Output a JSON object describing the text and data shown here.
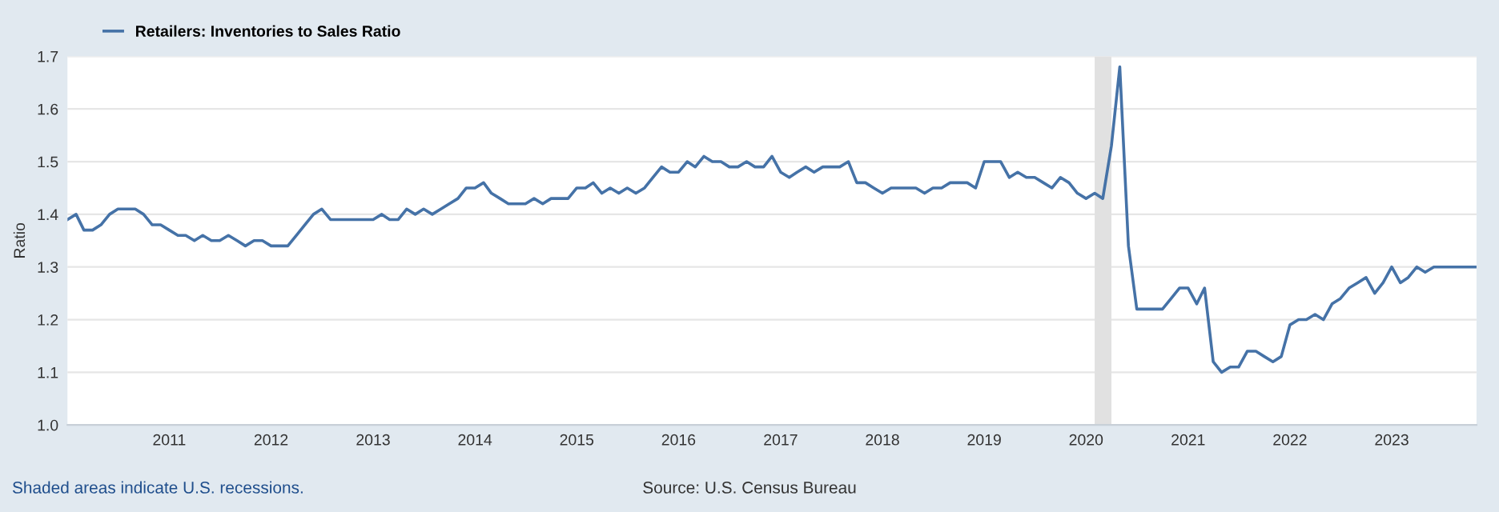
{
  "chart_data": {
    "type": "line",
    "ylabel": "Ratio",
    "x": [
      "2010-01",
      "2010-02",
      "2010-03",
      "2010-04",
      "2010-05",
      "2010-06",
      "2010-07",
      "2010-08",
      "2010-09",
      "2010-10",
      "2010-11",
      "2010-12",
      "2011-01",
      "2011-02",
      "2011-03",
      "2011-04",
      "2011-05",
      "2011-06",
      "2011-07",
      "2011-08",
      "2011-09",
      "2011-10",
      "2011-11",
      "2011-12",
      "2012-01",
      "2012-02",
      "2012-03",
      "2012-04",
      "2012-05",
      "2012-06",
      "2012-07",
      "2012-08",
      "2012-09",
      "2012-10",
      "2012-11",
      "2012-12",
      "2013-01",
      "2013-02",
      "2013-03",
      "2013-04",
      "2013-05",
      "2013-06",
      "2013-07",
      "2013-08",
      "2013-09",
      "2013-10",
      "2013-11",
      "2013-12",
      "2014-01",
      "2014-02",
      "2014-03",
      "2014-04",
      "2014-05",
      "2014-06",
      "2014-07",
      "2014-08",
      "2014-09",
      "2014-10",
      "2014-11",
      "2014-12",
      "2015-01",
      "2015-02",
      "2015-03",
      "2015-04",
      "2015-05",
      "2015-06",
      "2015-07",
      "2015-08",
      "2015-09",
      "2015-10",
      "2015-11",
      "2015-12",
      "2016-01",
      "2016-02",
      "2016-03",
      "2016-04",
      "2016-05",
      "2016-06",
      "2016-07",
      "2016-08",
      "2016-09",
      "2016-10",
      "2016-11",
      "2016-12",
      "2017-01",
      "2017-02",
      "2017-03",
      "2017-04",
      "2017-05",
      "2017-06",
      "2017-07",
      "2017-08",
      "2017-09",
      "2017-10",
      "2017-11",
      "2017-12",
      "2018-01",
      "2018-02",
      "2018-03",
      "2018-04",
      "2018-05",
      "2018-06",
      "2018-07",
      "2018-08",
      "2018-09",
      "2018-10",
      "2018-11",
      "2018-12",
      "2019-01",
      "2019-02",
      "2019-03",
      "2019-04",
      "2019-05",
      "2019-06",
      "2019-07",
      "2019-08",
      "2019-09",
      "2019-10",
      "2019-11",
      "2019-12",
      "2020-01",
      "2020-02",
      "2020-03",
      "2020-04",
      "2020-05",
      "2020-06",
      "2020-07",
      "2020-08",
      "2020-09",
      "2020-10",
      "2020-11",
      "2020-12",
      "2021-01",
      "2021-02",
      "2021-03",
      "2021-04",
      "2021-05",
      "2021-06",
      "2021-07",
      "2021-08",
      "2021-09",
      "2021-10",
      "2021-11",
      "2021-12",
      "2022-01",
      "2022-02",
      "2022-03",
      "2022-04",
      "2022-05",
      "2022-06",
      "2022-07",
      "2022-08",
      "2022-09",
      "2022-10",
      "2022-11",
      "2022-12",
      "2023-01",
      "2023-02",
      "2023-03",
      "2023-04",
      "2023-05",
      "2023-06",
      "2023-07",
      "2023-08",
      "2023-09",
      "2023-10",
      "2023-11"
    ],
    "series": [
      {
        "name": "Retailers: Inventories to Sales Ratio",
        "color": "#4572a7",
        "values": [
          1.39,
          1.4,
          1.37,
          1.37,
          1.38,
          1.4,
          1.41,
          1.41,
          1.41,
          1.4,
          1.38,
          1.38,
          1.37,
          1.36,
          1.36,
          1.35,
          1.36,
          1.35,
          1.35,
          1.36,
          1.35,
          1.34,
          1.35,
          1.35,
          1.34,
          1.34,
          1.34,
          1.36,
          1.38,
          1.4,
          1.41,
          1.39,
          1.39,
          1.39,
          1.39,
          1.39,
          1.39,
          1.4,
          1.39,
          1.39,
          1.41,
          1.4,
          1.41,
          1.4,
          1.41,
          1.42,
          1.43,
          1.45,
          1.45,
          1.46,
          1.44,
          1.43,
          1.42,
          1.42,
          1.42,
          1.43,
          1.42,
          1.43,
          1.43,
          1.43,
          1.45,
          1.45,
          1.46,
          1.44,
          1.45,
          1.44,
          1.45,
          1.44,
          1.45,
          1.47,
          1.49,
          1.48,
          1.48,
          1.5,
          1.49,
          1.51,
          1.5,
          1.5,
          1.49,
          1.49,
          1.5,
          1.49,
          1.49,
          1.51,
          1.48,
          1.47,
          1.48,
          1.49,
          1.48,
          1.49,
          1.49,
          1.49,
          1.5,
          1.46,
          1.46,
          1.45,
          1.44,
          1.45,
          1.45,
          1.45,
          1.45,
          1.44,
          1.45,
          1.45,
          1.46,
          1.46,
          1.46,
          1.45,
          1.5,
          1.5,
          1.5,
          1.47,
          1.48,
          1.47,
          1.47,
          1.46,
          1.45,
          1.47,
          1.46,
          1.44,
          1.43,
          1.44,
          1.43,
          1.53,
          1.68,
          1.34,
          1.22,
          1.22,
          1.22,
          1.22,
          1.24,
          1.26,
          1.26,
          1.23,
          1.26,
          1.12,
          1.1,
          1.11,
          1.11,
          1.14,
          1.14,
          1.13,
          1.12,
          1.13,
          1.19,
          1.2,
          1.2,
          1.21,
          1.2,
          1.23,
          1.24,
          1.26,
          1.27,
          1.28,
          1.25,
          1.27,
          1.3,
          1.27,
          1.28,
          1.3,
          1.29,
          1.3,
          1.3,
          1.3,
          1.3,
          1.3,
          1.3
        ]
      }
    ],
    "xlim": [
      "2010-01",
      "2023-11"
    ],
    "xticks": [
      {
        "value": "2011-01",
        "label": "2011"
      },
      {
        "value": "2012-01",
        "label": "2012"
      },
      {
        "value": "2013-01",
        "label": "2013"
      },
      {
        "value": "2014-01",
        "label": "2014"
      },
      {
        "value": "2015-01",
        "label": "2015"
      },
      {
        "value": "2016-01",
        "label": "2016"
      },
      {
        "value": "2017-01",
        "label": "2017"
      },
      {
        "value": "2018-01",
        "label": "2018"
      },
      {
        "value": "2019-01",
        "label": "2019"
      },
      {
        "value": "2020-01",
        "label": "2020"
      },
      {
        "value": "2021-01",
        "label": "2021"
      },
      {
        "value": "2022-01",
        "label": "2022"
      },
      {
        "value": "2023-01",
        "label": "2023"
      }
    ],
    "ylim": [
      1.0,
      1.7
    ],
    "yticks": [
      {
        "value": 1.0,
        "label": "1.0"
      },
      1.1,
      1.2,
      1.3,
      1.4,
      1.5,
      1.6,
      1.7
    ],
    "bands": [
      {
        "axis": "x",
        "from": "2020-02",
        "to": "2020-04",
        "color": "#e1e1e1"
      }
    ],
    "grid": "y",
    "legend": "top left",
    "line_style": "solid",
    "marker": "none",
    "annotations": [
      "Shaded areas indicate U.S. recessions.",
      "Source: U.S. Census Bureau"
    ]
  }
}
